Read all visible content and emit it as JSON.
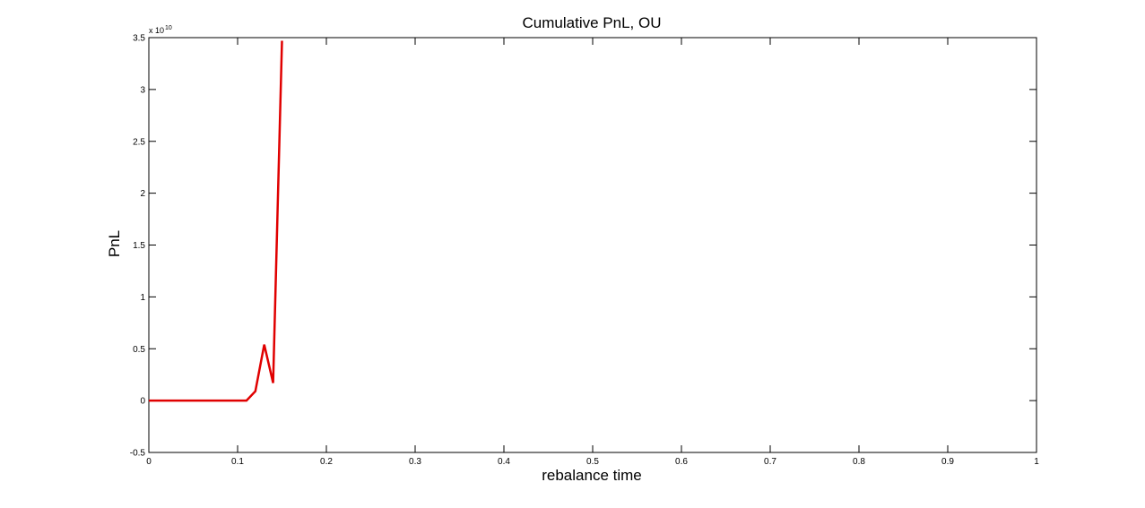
{
  "chart_data": {
    "type": "line",
    "title": "Cumulative PnL, OU",
    "xlabel": "rebalance time",
    "ylabel": "PnL",
    "y_multiplier_label": "x 10",
    "y_multiplier_exponent": "10",
    "xlim": [
      0,
      1
    ],
    "ylim": [
      -0.5,
      3.5
    ],
    "x_ticks": [
      "0",
      "0.1",
      "0.2",
      "0.3",
      "0.4",
      "0.5",
      "0.6",
      "0.7",
      "0.8",
      "0.9",
      "1"
    ],
    "x_tick_values": [
      0,
      0.1,
      0.2,
      0.3,
      0.4,
      0.5,
      0.6,
      0.7,
      0.8,
      0.9,
      1
    ],
    "y_ticks": [
      "-0.5",
      "0",
      "0.5",
      "1",
      "1.5",
      "2",
      "2.5",
      "3",
      "3.5"
    ],
    "y_tick_values": [
      -0.5,
      0,
      0.5,
      1,
      1.5,
      2,
      2.5,
      3,
      3.5
    ],
    "grid": false,
    "series": [
      {
        "color": "#e00000",
        "x": [
          0,
          0.01,
          0.02,
          0.03,
          0.04,
          0.05,
          0.06,
          0.07,
          0.08,
          0.09,
          0.1,
          0.11,
          0.12,
          0.13,
          0.14,
          0.15
        ],
        "y": [
          0,
          0,
          0,
          0,
          0,
          0,
          0,
          0,
          0,
          0,
          0,
          0,
          0.09,
          0.54,
          0.17,
          3.47
        ]
      }
    ]
  }
}
